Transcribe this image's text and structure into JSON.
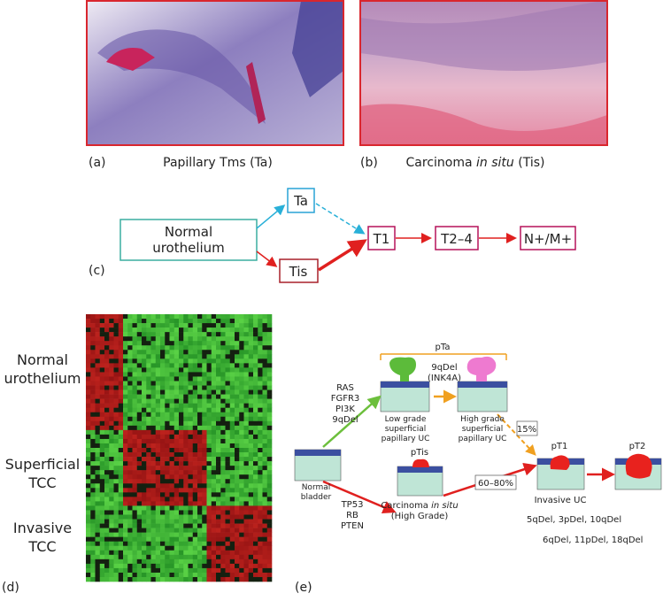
{
  "panel_a": {
    "label": "(a)",
    "caption": "Papillary Tms (Ta)"
  },
  "panel_b": {
    "label": "(b)",
    "caption": [
      "Carcinoma ",
      "in situ",
      " (Tis)"
    ]
  },
  "panel_c": {
    "label": "(c)",
    "nodes": {
      "normal": [
        "Normal",
        "urothelium"
      ],
      "ta": "Ta",
      "tis": "Tis",
      "t1": "T1",
      "t2_4": "T2–4",
      "nm": "N+/M+"
    }
  },
  "panel_d": {
    "label": "(d)",
    "row_groups": [
      [
        "Normal",
        "urothelium"
      ],
      [
        "Superficial",
        "TCC"
      ],
      [
        "Invasive",
        "TCC"
      ]
    ]
  },
  "panel_e": {
    "label": "(e)",
    "pta": "pTa",
    "low_grade_genes": [
      "RAS",
      "FGFR3",
      "PI3K",
      "9qDel"
    ],
    "high_grade_genes": [
      "9qDel",
      "(INK4A)"
    ],
    "low_grade": [
      "Low grade",
      "superficial",
      "papillary UC"
    ],
    "high_grade": [
      "High grade",
      "superficial",
      "papillary UC"
    ],
    "progression_pta": "15%",
    "pt1": "pT1",
    "pt2": "pT2",
    "normal": [
      "Normal",
      "bladder"
    ],
    "ptis": "pTis",
    "tis_genes": [
      "TP53",
      "RB",
      "PTEN"
    ],
    "cis": [
      [
        "Carcinoma ",
        "in situ"
      ],
      [
        "(High Grade)"
      ]
    ],
    "progression_ptis": "60–80%",
    "invasive": "Invasive UC",
    "invasive_deletions": [
      "5qDel, 3pDel, 10qDel",
      "6qDel, 11pDel, 18qDel"
    ]
  }
}
